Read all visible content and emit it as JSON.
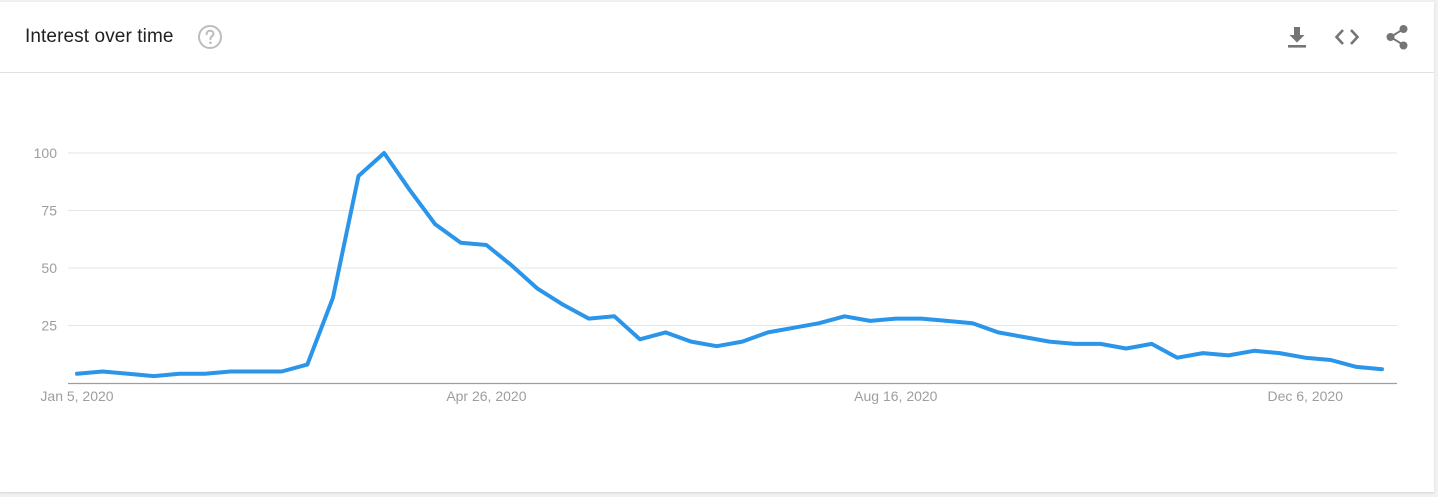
{
  "header": {
    "title": "Interest over time",
    "help_icon": "help-circle-icon",
    "actions": [
      {
        "name": "download-button",
        "icon": "download-icon"
      },
      {
        "name": "embed-button",
        "icon": "code-icon"
      },
      {
        "name": "share-button",
        "icon": "share-icon"
      }
    ]
  },
  "colors": {
    "line": "#2b95e9",
    "grid": "#e5e5e5",
    "axis": "#9e9e9e",
    "icon": "#757575",
    "help_icon": "#bdbdbd"
  },
  "chart_data": {
    "type": "line",
    "title": "",
    "xlabel": "",
    "ylabel": "",
    "ylim": [
      0,
      100
    ],
    "yticks": [
      "100",
      "75",
      "50",
      "25"
    ],
    "ytick_values": [
      100,
      75,
      50,
      25
    ],
    "grid": true,
    "x_start": "2020-01-05",
    "x_interval": "weekly",
    "xticks": [
      {
        "label": "Jan 5, 2020",
        "index": 0
      },
      {
        "label": "Apr 26, 2020",
        "index": 16
      },
      {
        "label": "Aug 16, 2020",
        "index": 32
      },
      {
        "label": "Dec 6, 2020",
        "index": 48
      }
    ],
    "series": [
      {
        "values": [
          4,
          5,
          4,
          3,
          4,
          4,
          5,
          5,
          5,
          8,
          37,
          90,
          100,
          84,
          69,
          61,
          60,
          51,
          41,
          34,
          28,
          29,
          19,
          22,
          18,
          16,
          18,
          22,
          24,
          26,
          29,
          27,
          28,
          28,
          27,
          26,
          22,
          20,
          18,
          17,
          17,
          15,
          17,
          11,
          13,
          12,
          14,
          13,
          11,
          10,
          7,
          6
        ]
      }
    ]
  }
}
